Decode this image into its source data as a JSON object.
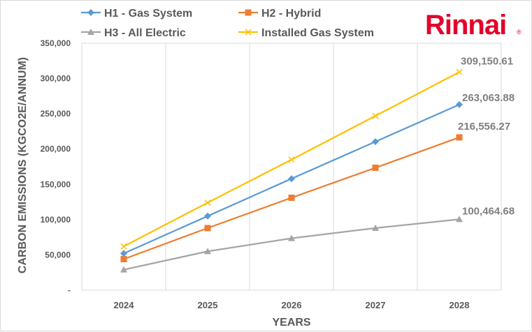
{
  "brand": {
    "name": "Rinnai",
    "registered_mark": "®",
    "color": "#e4002b"
  },
  "chart_data": {
    "type": "line",
    "title": "",
    "xlabel": "YEARS",
    "ylabel": "CARBON EMISSIONS (KGCO2E/ANNUM)",
    "categories": [
      "2024",
      "2025",
      "2026",
      "2027",
      "2028"
    ],
    "ylim": [
      0,
      350000
    ],
    "yticks": [
      0,
      50000,
      100000,
      150000,
      200000,
      250000,
      300000,
      350000
    ],
    "ytick_labels": [
      "-",
      "50,000",
      "100,000",
      "150,000",
      "200,000",
      "250,000",
      "300,000",
      "350,000"
    ],
    "grid": "vertical",
    "legend_position": "top",
    "series": [
      {
        "name": "H1 - Gas System",
        "color": "#5b9bd5",
        "marker": "diamond",
        "values": [
          52000,
          105000,
          158000,
          210500,
          263063.88
        ],
        "end_label": "263,063.88"
      },
      {
        "name": "H2 - Hybrid",
        "color": "#ed7d31",
        "marker": "square",
        "values": [
          44000,
          88000,
          131000,
          173500,
          216556.27
        ],
        "end_label": "216,556.27"
      },
      {
        "name": "H3 - All Electric",
        "color": "#a5a5a5",
        "marker": "triangle",
        "values": [
          29000,
          55000,
          73500,
          88000,
          100464.68
        ],
        "end_label": "100,464.68"
      },
      {
        "name": "Installed Gas System",
        "color": "#ffc000",
        "marker": "x",
        "values": [
          62000,
          124000,
          185000,
          247000,
          309150.61
        ],
        "end_label": "309,150.61"
      }
    ]
  }
}
